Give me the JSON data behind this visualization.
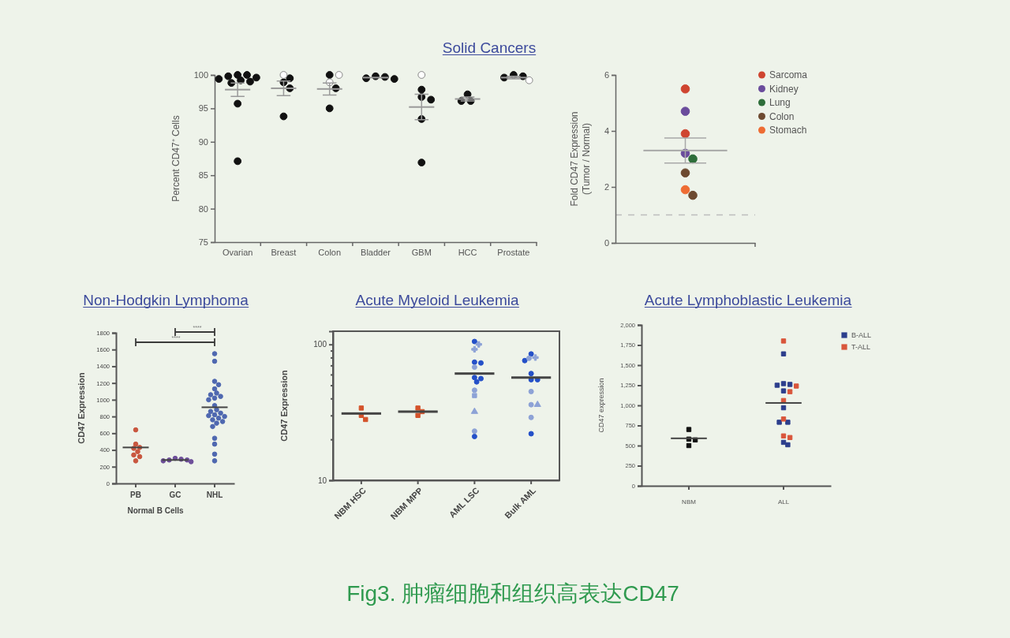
{
  "chart_data": [
    {
      "type": "scatter",
      "title": "Solid Cancers",
      "ylabel": "Percent CD47⁺ Cells",
      "categories": [
        "Ovarian",
        "Breast",
        "Colon",
        "Bladder",
        "GBM",
        "HCC",
        "Prostate"
      ],
      "ylim": [
        75,
        100
      ],
      "yticks": [
        75,
        80,
        85,
        90,
        95,
        100
      ],
      "marker": "circle",
      "series": [
        {
          "color": "#111111",
          "x": [
            "Ovarian",
            "Ovarian",
            "Ovarian",
            "Ovarian",
            "Ovarian",
            "Ovarian",
            "Ovarian",
            "Ovarian",
            "Ovarian",
            "Ovarian",
            "Breast",
            "Breast",
            "Breast",
            "Breast",
            "Colon",
            "Colon",
            "Colon",
            "Bladder",
            "Bladder",
            "Bladder",
            "Bladder",
            "GBM",
            "GBM",
            "GBM",
            "GBM",
            "GBM",
            "HCC",
            "HCC",
            "HCC",
            "Prostate",
            "Prostate",
            "Prostate"
          ],
          "values": [
            100,
            100,
            99.8,
            99.6,
            99.4,
            99.2,
            99,
            98.8,
            95.7,
            87.1,
            99.5,
            98.9,
            98,
            93.8,
            100,
            98,
            95,
            99.8,
            99.7,
            99.5,
            99.4,
            97.8,
            96.7,
            96.3,
            93.4,
            86.9,
            97.1,
            96.1,
            96.1,
            100,
            99.8,
            99.6
          ]
        },
        {
          "color": "#ffffff",
          "x": [
            "Breast",
            "Colon",
            "Colon",
            "GBM",
            "Prostate"
          ],
          "values": [
            100,
            100,
            98.9,
            100,
            99.2
          ]
        },
        {
          "type": "box",
          "color": "#9a9a9a",
          "boxes": [
            {
              "low": 96.8,
              "q1": 97.8,
              "median": 97.8,
              "q3": 97.8,
              "high": 98.8
            },
            {
              "low": 96.9,
              "q1": 98,
              "median": 98,
              "q3": 98,
              "high": 99.1
            },
            {
              "low": 97,
              "q1": 97.9,
              "median": 97.9,
              "q3": 97.9,
              "high": 98.8
            },
            {
              "low": 99.6,
              "q1": 99.6,
              "median": 99.6,
              "q3": 99.6,
              "high": 99.6
            },
            {
              "low": 93.3,
              "q1": 95.2,
              "median": 95.2,
              "q3": 95.2,
              "high": 97.1
            },
            {
              "low": 96.1,
              "q1": 96.4,
              "median": 96.4,
              "q3": 96.4,
              "high": 96.7
            },
            {
              "low": 99.4,
              "q1": 99.6,
              "median": 99.6,
              "q3": 99.6,
              "high": 99.8
            }
          ]
        }
      ]
    },
    {
      "type": "scatter",
      "ylabel": "Fold CD47 Expression\n(Tumor / Normal)",
      "categories": [
        null
      ],
      "ylim": [
        0,
        6
      ],
      "yticks": [
        0,
        2,
        4,
        6
      ],
      "marker": "circle",
      "legend": "top right",
      "tick_labels": "y",
      "ref_lines": [
        {
          "axis": "y",
          "value": 1,
          "line_style": "dashed",
          "color": "#bdbdbd"
        }
      ],
      "series": [
        {
          "name": "Sarcoma",
          "color": "#cf4530",
          "x": [
            null,
            null
          ],
          "values": [
            5.5,
            3.9
          ]
        },
        {
          "name": "Kidney",
          "color": "#6a4c9c",
          "x": [
            null,
            null
          ],
          "values": [
            4.7,
            3.2
          ]
        },
        {
          "name": "Lung",
          "color": "#2e6e3a",
          "x": [
            null
          ],
          "values": [
            3
          ]
        },
        {
          "name": "Colon",
          "color": "#6d4a30",
          "x": [
            null,
            null
          ],
          "values": [
            2.5,
            1.7
          ]
        },
        {
          "name": "Stomach",
          "color": "#ee6c33",
          "x": [
            null
          ],
          "values": [
            1.9
          ]
        },
        {
          "type": "box",
          "color": "#a8a8a8",
          "boxes": [
            {
              "low": 2.85,
              "q1": 3.3,
              "median": 3.3,
              "q3": 3.3,
              "high": 3.75
            }
          ]
        }
      ]
    },
    {
      "type": "scatter",
      "title": "Non-Hodgkin Lymphoma",
      "ylabel": "CD47 Expression",
      "xlabel": "Normal B Cells",
      "categories": [
        "PB",
        "GC",
        "NHL"
      ],
      "ylim": [
        0,
        1800
      ],
      "yticks": [
        0,
        200,
        400,
        600,
        800,
        1000,
        1200,
        1400,
        1600,
        1800
      ],
      "marker": "circle",
      "annotations": [
        "****",
        "****"
      ],
      "series": [
        {
          "color": "#c9573f",
          "x": [
            "PB",
            "PB",
            "PB",
            "PB",
            "PB",
            "PB",
            "PB",
            "PB"
          ],
          "values": [
            640,
            470,
            430,
            420,
            380,
            340,
            320,
            270
          ]
        },
        {
          "color": "#6e4f9a",
          "x": [
            "GC",
            "GC",
            "GC",
            "GC",
            "GC",
            "GC"
          ],
          "values": [
            300,
            290,
            280,
            280,
            270,
            260
          ]
        },
        {
          "color": "#4f68b0",
          "x": [
            "NHL",
            "NHL",
            "NHL",
            "NHL",
            "NHL",
            "NHL",
            "NHL",
            "NHL",
            "NHL",
            "NHL",
            "NHL",
            "NHL",
            "NHL",
            "NHL",
            "NHL",
            "NHL",
            "NHL",
            "NHL",
            "NHL",
            "NHL",
            "NHL",
            "NHL",
            "NHL",
            "NHL",
            "NHL",
            "NHL"
          ],
          "values": [
            1550,
            1460,
            1220,
            1180,
            1130,
            1080,
            1060,
            1040,
            1020,
            1000,
            930,
            880,
            860,
            840,
            820,
            810,
            800,
            780,
            760,
            740,
            720,
            680,
            540,
            470,
            350,
            270
          ]
        },
        {
          "type": "box",
          "color": "#444444",
          "boxes": [
            {
              "low": 430,
              "q1": 430,
              "median": 430,
              "q3": 430,
              "high": 430
            },
            {
              "low": 280,
              "q1": 280,
              "median": 280,
              "q3": 280,
              "high": 280
            },
            {
              "low": 910,
              "q1": 910,
              "median": 910,
              "q3": 910,
              "high": 910
            }
          ]
        }
      ]
    },
    {
      "type": "scatter",
      "title": "Acute Myeloid Leukemia",
      "ylabel": "CD47 Expression",
      "categories": [
        "NBM HSC",
        "NBM MPP",
        "AML LSC",
        "Bulk AML"
      ],
      "log": true,
      "ylim": [
        10,
        125
      ],
      "yticks": [
        10,
        {
          "value": 20,
          "label": null
        },
        {
          "value": 30,
          "label": null
        },
        {
          "value": 40,
          "label": null
        },
        {
          "value": 50,
          "label": null
        },
        {
          "value": 60,
          "label": null
        },
        {
          "value": 70,
          "label": null
        },
        {
          "value": 80,
          "label": null
        },
        {
          "value": 90,
          "label": null
        },
        100
      ],
      "marker": "circle",
      "series": [
        {
          "color": "#d4532b",
          "marker": "square",
          "x": [
            "NBM HSC",
            "NBM HSC",
            "NBM HSC",
            "NBM MPP",
            "NBM MPP",
            "NBM MPP"
          ],
          "values": [
            34,
            28,
            30,
            34,
            30,
            32
          ]
        },
        {
          "color": "#2450c8",
          "x": [
            "AML LSC",
            "AML LSC",
            "AML LSC",
            "AML LSC",
            "AML LSC",
            "AML LSC",
            "AML LSC",
            "Bulk AML",
            "Bulk AML",
            "Bulk AML",
            "Bulk AML",
            "Bulk AML",
            "Bulk AML"
          ],
          "values": [
            105,
            73,
            74,
            57,
            56,
            53,
            21,
            76,
            85,
            61,
            55,
            55,
            22
          ]
        },
        {
          "color": "#8da2d6",
          "x": [
            "AML LSC",
            "AML LSC",
            "AML LSC",
            "Bulk AML",
            "Bulk AML",
            "Bulk AML",
            "Bulk AML"
          ],
          "values": [
            68,
            46,
            23,
            79,
            45,
            36,
            29
          ]
        },
        {
          "color": "#8da2d6",
          "marker": "square",
          "x": [
            "AML LSC"
          ],
          "values": [
            42
          ]
        },
        {
          "color": "#8da2d6",
          "marker": "triangle",
          "x": [
            "AML LSC",
            "Bulk AML"
          ],
          "values": [
            32,
            36
          ]
        },
        {
          "color": "#8da2d6",
          "marker": "cross",
          "x": [
            "AML LSC",
            "AML LSC",
            "Bulk AML"
          ],
          "values": [
            100,
            92,
            80
          ]
        },
        {
          "type": "box",
          "color": "#444444",
          "boxes": [
            {
              "low": 31,
              "q1": 31,
              "median": 31,
              "q3": 31,
              "high": 31
            },
            {
              "low": 32,
              "q1": 32,
              "median": 32,
              "q3": 32,
              "high": 32
            },
            {
              "low": 61,
              "q1": 61,
              "median": 61,
              "q3": 61,
              "high": 61
            },
            {
              "low": 57,
              "q1": 57,
              "median": 57,
              "q3": 57,
              "high": 57
            }
          ]
        }
      ]
    },
    {
      "type": "scatter",
      "title": "Acute Lymphoblastic Leukemia",
      "ylabel": "CD47 expression",
      "categories": [
        "NBM",
        "ALL"
      ],
      "ylim": [
        0,
        2000
      ],
      "yticks": [
        0,
        250,
        500,
        750,
        {
          "value": 1000,
          "label": "1,000"
        },
        {
          "value": 1250,
          "label": "1,250"
        },
        {
          "value": 1500,
          "label": "1,500"
        },
        {
          "value": 1750,
          "label": "1,750"
        },
        {
          "value": 2000,
          "label": "2,000"
        }
      ],
      "marker": "square",
      "legend": "top right",
      "annotations": [
        "Fig3. 肿瘤细胞和组织高表达CD47"
      ],
      "series": [
        {
          "color": "#111111",
          "x": [
            "NBM",
            "NBM",
            "NBM",
            "NBM"
          ],
          "values": [
            700,
            570,
            580,
            500
          ]
        },
        {
          "name": "B-ALL",
          "color": "#2c3e8c",
          "x": [
            "ALL",
            "ALL",
            "ALL",
            "ALL",
            "ALL",
            "ALL",
            "ALL",
            "ALL",
            "ALL",
            "ALL"
          ],
          "values": [
            1640,
            1270,
            1260,
            1250,
            1180,
            970,
            790,
            790,
            510,
            540
          ]
        },
        {
          "name": "T-ALL",
          "color": "#d9553b",
          "x": [
            "ALL",
            "ALL",
            "ALL",
            "ALL",
            "ALL",
            "ALL",
            "ALL"
          ],
          "values": [
            1800,
            1240,
            1170,
            1060,
            830,
            600,
            620
          ]
        },
        {
          "type": "box",
          "color": "#444444",
          "boxes": [
            {
              "low": 590,
              "q1": 590,
              "median": 590,
              "q3": 590,
              "high": 590
            },
            {
              "low": 1030,
              "q1": 1030,
              "median": 1030,
              "q3": 1030,
              "high": 1030
            }
          ]
        }
      ]
    }
  ]
}
